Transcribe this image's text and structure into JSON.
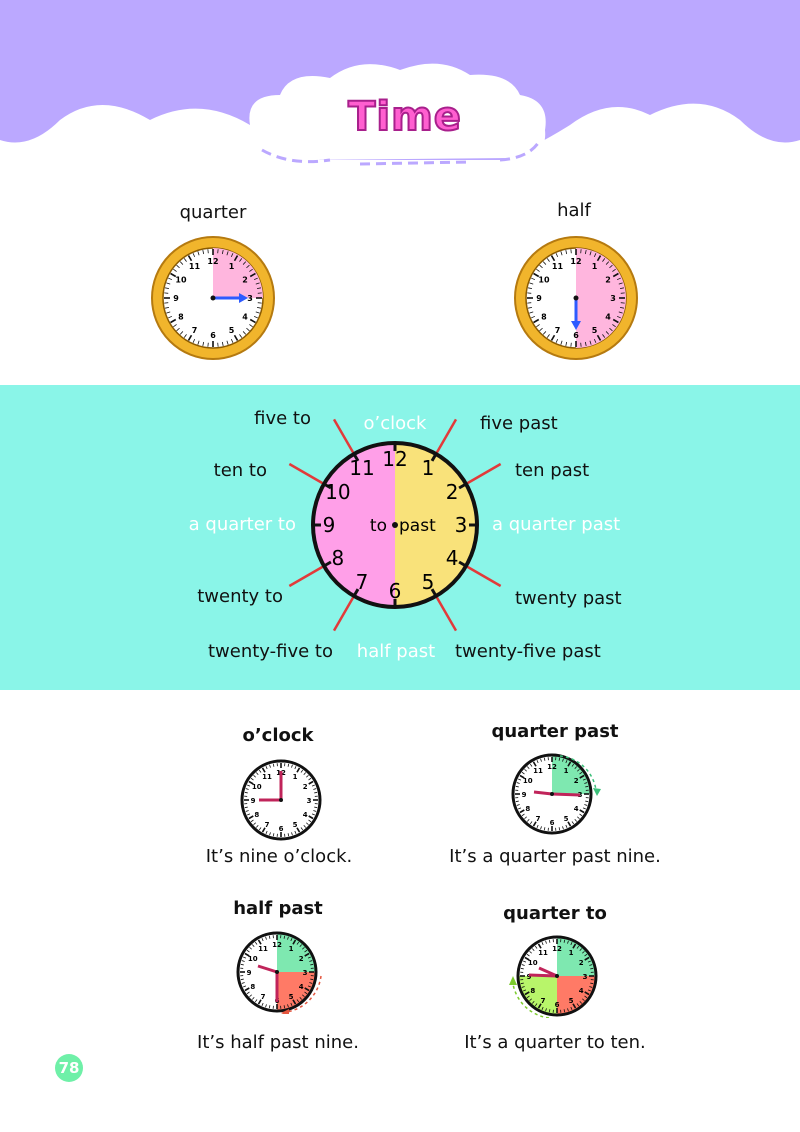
{
  "title": "Time",
  "top_clocks": [
    {
      "label": "quarter"
    },
    {
      "label": "half"
    }
  ],
  "diagram": {
    "numbers": [
      "12",
      "1",
      "2",
      "3",
      "4",
      "5",
      "6",
      "7",
      "8",
      "9",
      "10",
      "11"
    ],
    "center_to": "to",
    "center_past": "past",
    "labels": {
      "oclock": "o’clock",
      "five_past": "five past",
      "ten_past": "ten past",
      "quarter_past": "a quarter past",
      "twenty_past": "twenty past",
      "twenty_five_past": "twenty-five past",
      "half_past": "half past",
      "twenty_five_to": "twenty-five to",
      "twenty_to": "twenty to",
      "quarter_to": "a quarter to",
      "ten_to": "ten to",
      "five_to": "five to"
    },
    "colors": {
      "to": "#ff9fe8",
      "past": "#f9e27a"
    }
  },
  "examples": [
    {
      "heading": "o’clock",
      "caption": "It’s nine o’clock."
    },
    {
      "heading": "quarter past",
      "caption": "It’s a quarter past nine."
    },
    {
      "heading": "half past",
      "caption": "It’s half past nine."
    },
    {
      "heading": "quarter to",
      "caption": "It’s a quarter to ten."
    }
  ],
  "page_number": "78"
}
